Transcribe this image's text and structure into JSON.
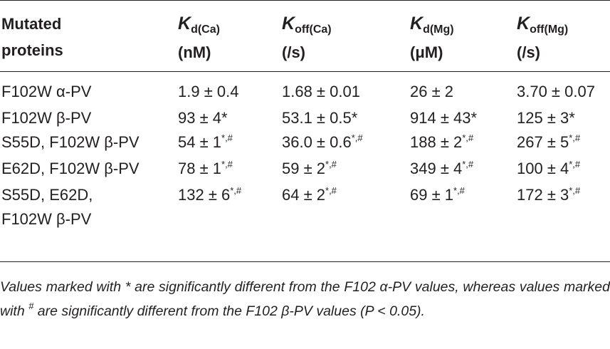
{
  "table": {
    "headers": [
      {
        "line1": "Mutated",
        "line2": "proteins"
      },
      {
        "symbol": "K",
        "subscript": "d(Ca)",
        "unit": "(nM)"
      },
      {
        "symbol": "K",
        "subscript": "off(Ca)",
        "unit": "(/s)"
      },
      {
        "symbol": "K",
        "subscript": "d(Mg)",
        "unit": "(μM)"
      },
      {
        "symbol": "K",
        "subscript": "off(Mg)",
        "unit": "(/s)"
      }
    ],
    "rows": [
      {
        "protein": [
          "F102W α-PV"
        ],
        "cells": [
          {
            "v": "1.9 ± 0.4",
            "m": ""
          },
          {
            "v": "1.68 ± 0.01",
            "m": ""
          },
          {
            "v": "26 ± 2",
            "m": ""
          },
          {
            "v": "3.70 ± 0.07",
            "m": ""
          }
        ]
      },
      {
        "protein": [
          "F102W β-PV"
        ],
        "cells": [
          {
            "v": "93 ± 4",
            "m": "*"
          },
          {
            "v": "53.1 ± 0.5",
            "m": "*"
          },
          {
            "v": "914 ± 43",
            "m": "*"
          },
          {
            "v": "125 ± 3",
            "m": "*"
          }
        ]
      },
      {
        "protein": [
          "S55D, F102W β-PV"
        ],
        "cells": [
          {
            "v": "54 ± 1",
            "m": "*,#"
          },
          {
            "v": "36.0 ± 0.6",
            "m": "*,#"
          },
          {
            "v": "188 ± 2",
            "m": "*,#"
          },
          {
            "v": "267 ± 5",
            "m": "*,#"
          }
        ]
      },
      {
        "protein": [
          "E62D, F102W β-PV"
        ],
        "cells": [
          {
            "v": "78 ± 1",
            "m": "*,#"
          },
          {
            "v": "59 ± 2",
            "m": "*,#"
          },
          {
            "v": "349 ± 4",
            "m": "*,#"
          },
          {
            "v": "100 ± 4",
            "m": "*,#"
          }
        ]
      },
      {
        "protein": [
          "S55D, E62D,",
          "F102W β-PV"
        ],
        "cells": [
          {
            "v": "132 ± 6",
            "m": "*,#"
          },
          {
            "v": "64 ± 2",
            "m": "*,#"
          },
          {
            "v": "69 ± 1",
            "m": "*,#"
          },
          {
            "v": "172 ± 3",
            "m": "*,#"
          }
        ]
      }
    ]
  },
  "footnote": {
    "part1": "Values marked with * are significantly different from the F102 α-PV values, whereas values marked with ",
    "hash": "#",
    "part2": " are significantly different from the F102 β-PV values (P < 0.05)."
  }
}
